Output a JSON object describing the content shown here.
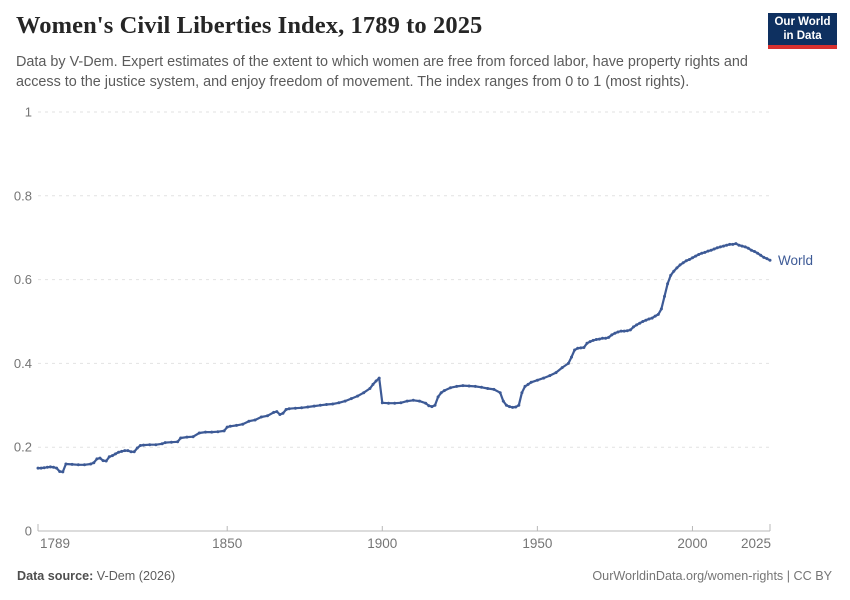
{
  "header": {
    "title": "Women's Civil Liberties Index, 1789 to 2025",
    "subtitle": "Data by V-Dem. Expert estimates of the extent to which women are free from forced labor, have property rights and access to the justice system, and enjoy freedom of movement. The index ranges from 0 to 1 (most rights).",
    "logo": {
      "line1": "Our World",
      "line2": "in Data",
      "bg_color": "#0E3060",
      "accent_color": "#D8312F"
    }
  },
  "chart_data": {
    "type": "line",
    "title": "Women's Civil Liberties Index, 1789 to 2025",
    "xlabel": "",
    "ylabel": "",
    "xlim": [
      1789,
      2025
    ],
    "ylim": [
      0,
      1
    ],
    "xticks": [
      1789,
      1850,
      1900,
      1950,
      2000,
      2025
    ],
    "yticks": [
      0,
      0.2,
      0.4,
      0.6,
      0.8,
      1
    ],
    "grid": "dashed horizontal",
    "legend_position": "end-of-line label",
    "colors": {
      "grid": "#e2e2e2",
      "axis": "#b8b8b8",
      "tick_label": "#757575"
    },
    "series": [
      {
        "name": "World",
        "color": "#3D5A96",
        "points": [
          [
            1789,
            0.15
          ],
          [
            1790,
            0.15
          ],
          [
            1791,
            0.151
          ],
          [
            1792,
            0.152
          ],
          [
            1793,
            0.153
          ],
          [
            1794,
            0.152
          ],
          [
            1795,
            0.15
          ],
          [
            1796,
            0.142
          ],
          [
            1797,
            0.141
          ],
          [
            1798,
            0.16
          ],
          [
            1800,
            0.159
          ],
          [
            1802,
            0.158
          ],
          [
            1804,
            0.158
          ],
          [
            1806,
            0.16
          ],
          [
            1807,
            0.163
          ],
          [
            1808,
            0.172
          ],
          [
            1809,
            0.174
          ],
          [
            1810,
            0.168
          ],
          [
            1811,
            0.167
          ],
          [
            1812,
            0.177
          ],
          [
            1813,
            0.18
          ],
          [
            1814,
            0.184
          ],
          [
            1815,
            0.188
          ],
          [
            1816,
            0.19
          ],
          [
            1817,
            0.192
          ],
          [
            1818,
            0.192
          ],
          [
            1819,
            0.189
          ],
          [
            1820,
            0.189
          ],
          [
            1821,
            0.198
          ],
          [
            1822,
            0.204
          ],
          [
            1823,
            0.205
          ],
          [
            1825,
            0.206
          ],
          [
            1827,
            0.206
          ],
          [
            1829,
            0.208
          ],
          [
            1830,
            0.211
          ],
          [
            1832,
            0.212
          ],
          [
            1834,
            0.213
          ],
          [
            1835,
            0.222
          ],
          [
            1837,
            0.224
          ],
          [
            1839,
            0.225
          ],
          [
            1841,
            0.234
          ],
          [
            1843,
            0.236
          ],
          [
            1845,
            0.236
          ],
          [
            1847,
            0.237
          ],
          [
            1849,
            0.239
          ],
          [
            1850,
            0.248
          ],
          [
            1851,
            0.25
          ],
          [
            1853,
            0.252
          ],
          [
            1855,
            0.255
          ],
          [
            1857,
            0.262
          ],
          [
            1859,
            0.265
          ],
          [
            1861,
            0.272
          ],
          [
            1863,
            0.275
          ],
          [
            1865,
            0.283
          ],
          [
            1866,
            0.285
          ],
          [
            1867,
            0.278
          ],
          [
            1868,
            0.281
          ],
          [
            1869,
            0.29
          ],
          [
            1870,
            0.292
          ],
          [
            1872,
            0.293
          ],
          [
            1874,
            0.294
          ],
          [
            1876,
            0.296
          ],
          [
            1878,
            0.298
          ],
          [
            1880,
            0.3
          ],
          [
            1882,
            0.302
          ],
          [
            1884,
            0.303
          ],
          [
            1886,
            0.306
          ],
          [
            1888,
            0.31
          ],
          [
            1890,
            0.316
          ],
          [
            1892,
            0.322
          ],
          [
            1894,
            0.33
          ],
          [
            1896,
            0.34
          ],
          [
            1897,
            0.35
          ],
          [
            1898,
            0.358
          ],
          [
            1899,
            0.365
          ],
          [
            1900,
            0.306
          ],
          [
            1902,
            0.305
          ],
          [
            1904,
            0.305
          ],
          [
            1906,
            0.306
          ],
          [
            1908,
            0.31
          ],
          [
            1910,
            0.312
          ],
          [
            1912,
            0.31
          ],
          [
            1914,
            0.305
          ],
          [
            1915,
            0.299
          ],
          [
            1916,
            0.297
          ],
          [
            1917,
            0.3
          ],
          [
            1918,
            0.32
          ],
          [
            1919,
            0.33
          ],
          [
            1920,
            0.335
          ],
          [
            1922,
            0.342
          ],
          [
            1924,
            0.345
          ],
          [
            1926,
            0.347
          ],
          [
            1928,
            0.346
          ],
          [
            1930,
            0.345
          ],
          [
            1932,
            0.343
          ],
          [
            1934,
            0.34
          ],
          [
            1936,
            0.338
          ],
          [
            1938,
            0.33
          ],
          [
            1939,
            0.31
          ],
          [
            1940,
            0.3
          ],
          [
            1941,
            0.297
          ],
          [
            1942,
            0.295
          ],
          [
            1943,
            0.296
          ],
          [
            1944,
            0.3
          ],
          [
            1945,
            0.33
          ],
          [
            1946,
            0.345
          ],
          [
            1947,
            0.35
          ],
          [
            1948,
            0.355
          ],
          [
            1950,
            0.36
          ],
          [
            1952,
            0.365
          ],
          [
            1954,
            0.371
          ],
          [
            1956,
            0.378
          ],
          [
            1958,
            0.39
          ],
          [
            1960,
            0.4
          ],
          [
            1961,
            0.415
          ],
          [
            1962,
            0.432
          ],
          [
            1963,
            0.436
          ],
          [
            1964,
            0.437
          ],
          [
            1965,
            0.438
          ],
          [
            1966,
            0.448
          ],
          [
            1967,
            0.452
          ],
          [
            1968,
            0.455
          ],
          [
            1969,
            0.457
          ],
          [
            1970,
            0.458
          ],
          [
            1971,
            0.46
          ],
          [
            1972,
            0.46
          ],
          [
            1973,
            0.462
          ],
          [
            1974,
            0.468
          ],
          [
            1975,
            0.472
          ],
          [
            1976,
            0.475
          ],
          [
            1977,
            0.477
          ],
          [
            1978,
            0.477
          ],
          [
            1979,
            0.478
          ],
          [
            1980,
            0.48
          ],
          [
            1981,
            0.487
          ],
          [
            1982,
            0.492
          ],
          [
            1983,
            0.496
          ],
          [
            1984,
            0.5
          ],
          [
            1985,
            0.503
          ],
          [
            1986,
            0.506
          ],
          [
            1987,
            0.508
          ],
          [
            1988,
            0.513
          ],
          [
            1989,
            0.517
          ],
          [
            1990,
            0.53
          ],
          [
            1991,
            0.56
          ],
          [
            1992,
            0.59
          ],
          [
            1993,
            0.61
          ],
          [
            1994,
            0.62
          ],
          [
            1995,
            0.628
          ],
          [
            1996,
            0.635
          ],
          [
            1997,
            0.64
          ],
          [
            1998,
            0.645
          ],
          [
            1999,
            0.648
          ],
          [
            2000,
            0.652
          ],
          [
            2001,
            0.656
          ],
          [
            2002,
            0.66
          ],
          [
            2003,
            0.663
          ],
          [
            2004,
            0.665
          ],
          [
            2005,
            0.668
          ],
          [
            2006,
            0.67
          ],
          [
            2007,
            0.673
          ],
          [
            2008,
            0.676
          ],
          [
            2009,
            0.678
          ],
          [
            2010,
            0.68
          ],
          [
            2011,
            0.682
          ],
          [
            2012,
            0.684
          ],
          [
            2013,
            0.684
          ],
          [
            2014,
            0.686
          ],
          [
            2015,
            0.682
          ],
          [
            2016,
            0.68
          ],
          [
            2017,
            0.678
          ],
          [
            2018,
            0.675
          ],
          [
            2019,
            0.67
          ],
          [
            2020,
            0.667
          ],
          [
            2021,
            0.663
          ],
          [
            2022,
            0.658
          ],
          [
            2023,
            0.653
          ],
          [
            2024,
            0.65
          ],
          [
            2025,
            0.646
          ]
        ]
      }
    ]
  },
  "footer": {
    "source_label": "Data source:",
    "source_value": " V-Dem (2026)",
    "credit": "OurWorldinData.org/women-rights | CC BY"
  }
}
